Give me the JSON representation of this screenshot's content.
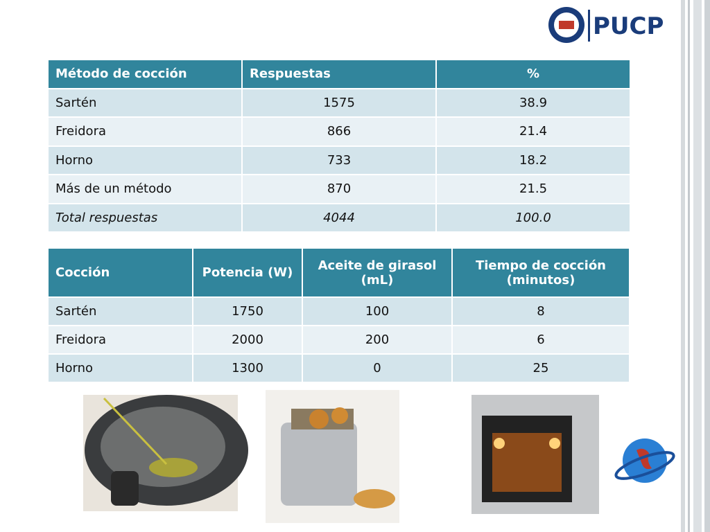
{
  "logo": {
    "text": "PUCP"
  },
  "table1": {
    "header": [
      "Método de cocción",
      "Respuestas",
      "%"
    ],
    "rows": [
      [
        "Sartén",
        "1575",
        "38.9"
      ],
      [
        "Freidora",
        "866",
        "21.4"
      ],
      [
        "Horno",
        "733",
        "18.2"
      ],
      [
        "Más de un método",
        "870",
        "21.5"
      ],
      [
        "Total respuestas",
        "4044",
        "100.0"
      ]
    ]
  },
  "table2": {
    "header": [
      "Cocción",
      "Potencia (W)",
      "Aceite de girasol (mL)",
      "Tiempo de cocción (minutos)"
    ],
    "rows": [
      [
        "Sartén",
        "1750",
        "100",
        "8"
      ],
      [
        "Freidora",
        "2000",
        "200",
        "6"
      ],
      [
        "Horno",
        "1300",
        "0",
        "25"
      ]
    ]
  }
}
